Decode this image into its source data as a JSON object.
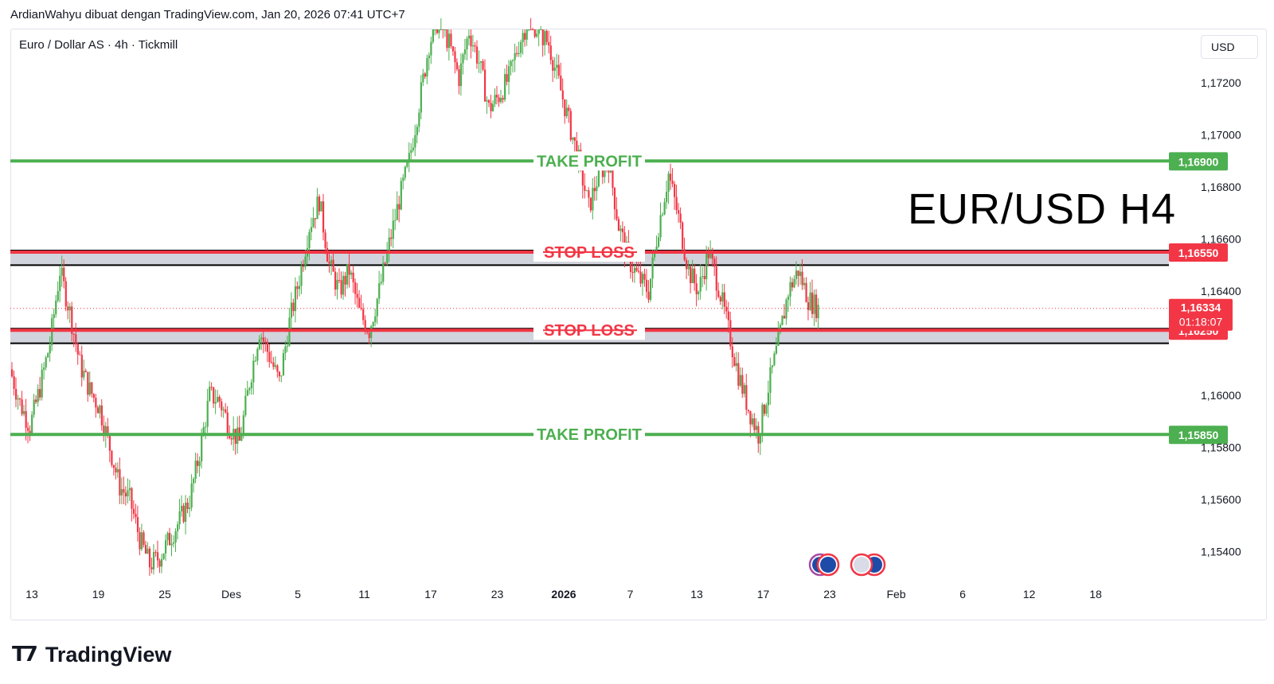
{
  "caption": "ArdianWahyu dibuat dengan TradingView.com, Jan 20, 2026 07:41 UTC+7",
  "symbol": "Euro / Dollar AS · 4h · Tickmill",
  "currency": "USD",
  "overlay_title": "EUR/USD H4",
  "footer_brand": "TradingView",
  "colors": {
    "green": "#4caf50",
    "red": "#f23645",
    "black": "#000000",
    "zone": "#d1d4dc"
  },
  "chart_data": {
    "type": "candlestick",
    "title": "",
    "xlabel": "",
    "ylabel": "",
    "ylim": [
      1.15295,
      1.17405
    ],
    "y_ticks": [
      {
        "value": 1.172,
        "label": "1,17200"
      },
      {
        "value": 1.17,
        "label": "1,17000"
      },
      {
        "value": 1.168,
        "label": "1,16800"
      },
      {
        "value": 1.166,
        "label": "1,16600"
      },
      {
        "value": 1.164,
        "label": "1,16400"
      },
      {
        "value": 1.16,
        "label": "1,16000"
      },
      {
        "value": 1.158,
        "label": "1,15800"
      },
      {
        "value": 1.156,
        "label": "1,15600"
      },
      {
        "value": 1.154,
        "label": "1,15400"
      }
    ],
    "x_ticks": [
      {
        "label": "13",
        "bold": false
      },
      {
        "label": "19",
        "bold": false
      },
      {
        "label": "25",
        "bold": false
      },
      {
        "label": "Des",
        "bold": false
      },
      {
        "label": "5",
        "bold": false
      },
      {
        "label": "11",
        "bold": false
      },
      {
        "label": "17",
        "bold": false
      },
      {
        "label": "23",
        "bold": false
      },
      {
        "label": "2026",
        "bold": true
      },
      {
        "label": "7",
        "bold": false
      },
      {
        "label": "13",
        "bold": false
      },
      {
        "label": "17",
        "bold": false
      },
      {
        "label": "23",
        "bold": false
      },
      {
        "label": "Feb",
        "bold": false
      },
      {
        "label": "6",
        "bold": false
      },
      {
        "label": "12",
        "bold": false
      },
      {
        "label": "18",
        "bold": false
      }
    ],
    "levels": [
      {
        "name": "TAKE PROFIT",
        "value": 1.169,
        "label": "1,16900",
        "color": "#4caf50"
      },
      {
        "name": "STOP LOSS",
        "value": 1.1655,
        "label": "1,16550",
        "color": "#f23645",
        "zone_to": 1.165
      },
      {
        "name": "STOP LOSS",
        "value": 1.1625,
        "label": "1,16250",
        "color": "#f23645",
        "zone_to": 1.162
      },
      {
        "name": "TAKE PROFIT",
        "value": 1.1585,
        "label": "1,15850",
        "color": "#4caf50"
      }
    ],
    "current_price": {
      "value": 1.16334,
      "label": "1,16334",
      "countdown": "01:18:07"
    },
    "price_path": [
      1.161,
      1.1597,
      1.1588,
      1.1603,
      1.162,
      1.1648,
      1.1632,
      1.1612,
      1.1602,
      1.1595,
      1.158,
      1.1565,
      1.156,
      1.1545,
      1.1535,
      1.1538,
      1.1545,
      1.1552,
      1.156,
      1.1578,
      1.16,
      1.1598,
      1.1588,
      1.1582,
      1.1605,
      1.1625,
      1.1615,
      1.1605,
      1.1628,
      1.1645,
      1.1665,
      1.1675,
      1.165,
      1.164,
      1.1648,
      1.1632,
      1.1625,
      1.164,
      1.1658,
      1.1675,
      1.169,
      1.1712,
      1.1735,
      1.1745,
      1.1735,
      1.1722,
      1.174,
      1.1728,
      1.171,
      1.1715,
      1.1722,
      1.1735,
      1.1745,
      1.174,
      1.1735,
      1.172,
      1.1705,
      1.169,
      1.1672,
      1.1685,
      1.169,
      1.1665,
      1.1652,
      1.1645,
      1.164,
      1.1665,
      1.1685,
      1.1668,
      1.1648,
      1.164,
      1.1655,
      1.1642,
      1.1625,
      1.1608,
      1.1595,
      1.1585,
      1.1603,
      1.162,
      1.164,
      1.1648,
      1.1637,
      1.16334
    ]
  }
}
